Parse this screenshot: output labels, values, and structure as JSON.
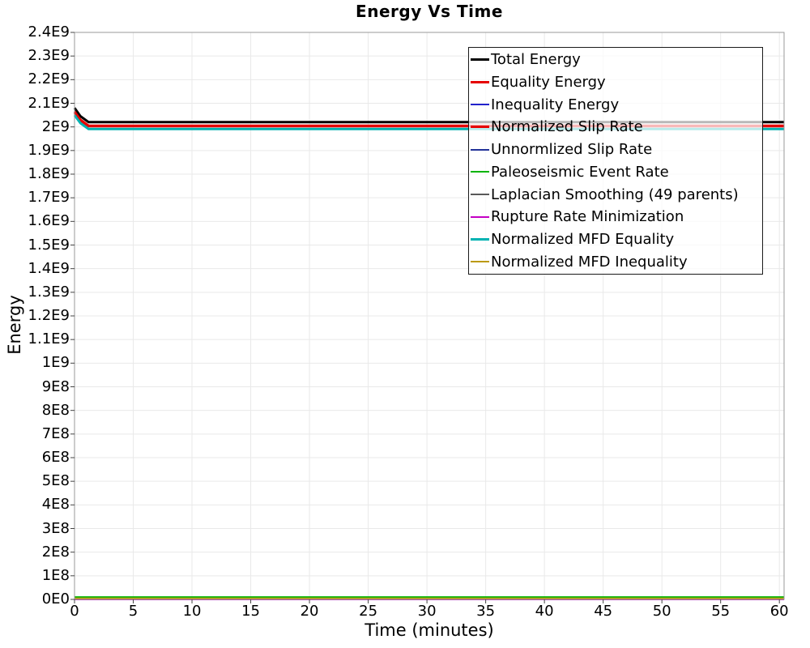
{
  "chart_data": {
    "type": "line",
    "title": "Energy Vs Time",
    "xlabel": "Time (minutes)",
    "ylabel": "Energy",
    "xlim": [
      0,
      60.4
    ],
    "ylim": [
      0,
      2400000000.0
    ],
    "grid": true,
    "legend_position": "top-right-inside",
    "x_ticks": [
      {
        "value": 0,
        "label": "0"
      },
      {
        "value": 5,
        "label": "5"
      },
      {
        "value": 10,
        "label": "10"
      },
      {
        "value": 15,
        "label": "15"
      },
      {
        "value": 20,
        "label": "20"
      },
      {
        "value": 25,
        "label": "25"
      },
      {
        "value": 30,
        "label": "30"
      },
      {
        "value": 35,
        "label": "35"
      },
      {
        "value": 40,
        "label": "40"
      },
      {
        "value": 45,
        "label": "45"
      },
      {
        "value": 50,
        "label": "50"
      },
      {
        "value": 55,
        "label": "55"
      },
      {
        "value": 60,
        "label": "60"
      }
    ],
    "y_ticks": [
      {
        "value": 0,
        "label": "0E0"
      },
      {
        "value": 100000000.0,
        "label": "1E8"
      },
      {
        "value": 200000000.0,
        "label": "2E8"
      },
      {
        "value": 300000000.0,
        "label": "3E8"
      },
      {
        "value": 400000000.0,
        "label": "4E8"
      },
      {
        "value": 500000000.0,
        "label": "5E8"
      },
      {
        "value": 600000000.0,
        "label": "6E8"
      },
      {
        "value": 700000000.0,
        "label": "7E8"
      },
      {
        "value": 800000000.0,
        "label": "8E8"
      },
      {
        "value": 900000000.0,
        "label": "9E8"
      },
      {
        "value": 1000000000.0,
        "label": "1E9"
      },
      {
        "value": 1100000000.0,
        "label": "1.1E9"
      },
      {
        "value": 1200000000.0,
        "label": "1.2E9"
      },
      {
        "value": 1300000000.0,
        "label": "1.3E9"
      },
      {
        "value": 1400000000.0,
        "label": "1.4E9"
      },
      {
        "value": 1500000000.0,
        "label": "1.5E9"
      },
      {
        "value": 1600000000.0,
        "label": "1.6E9"
      },
      {
        "value": 1700000000.0,
        "label": "1.7E9"
      },
      {
        "value": 1800000000.0,
        "label": "1.8E9"
      },
      {
        "value": 1900000000.0,
        "label": "1.9E9"
      },
      {
        "value": 2000000000.0,
        "label": "2E9"
      },
      {
        "value": 2100000000.0,
        "label": "2.1E9"
      },
      {
        "value": 2200000000.0,
        "label": "2.2E9"
      },
      {
        "value": 2300000000.0,
        "label": "2.3E9"
      },
      {
        "value": 2400000000.0,
        "label": "2.4E9"
      }
    ],
    "series": [
      {
        "name": "Total Energy",
        "color": "#000000",
        "stroke_width": 3,
        "points": [
          [
            0,
            2080000000.0
          ],
          [
            0.5,
            2045000000.0
          ],
          [
            1.2,
            2020000000.0
          ],
          [
            60.4,
            2020000000.0
          ]
        ]
      },
      {
        "name": "Equality Energy",
        "color": "#e60000",
        "stroke_width": 3,
        "points": [
          [
            0,
            2065000000.0
          ],
          [
            0.5,
            2030000000.0
          ],
          [
            1.2,
            2005000000.0
          ],
          [
            60.4,
            2005000000.0
          ]
        ]
      },
      {
        "name": "Inequality Energy",
        "color": "#2222cc",
        "stroke_width": 2,
        "points": [
          [
            0,
            0
          ],
          [
            60.4,
            0
          ]
        ]
      },
      {
        "name": "Normalized Slip Rate",
        "color": "#e60000",
        "stroke_width": 3,
        "points": [
          [
            0,
            2060000000.0
          ],
          [
            0.5,
            2027000000.0
          ],
          [
            1.2,
            2003000000.0
          ],
          [
            60.4,
            2003000000.0
          ]
        ]
      },
      {
        "name": "Unnormlized Slip Rate",
        "color": "#223399",
        "stroke_width": 2,
        "points": [
          [
            0,
            0
          ],
          [
            60.4,
            0
          ]
        ]
      },
      {
        "name": "Paleoseismic Event Rate",
        "color": "#00b400",
        "stroke_width": 2,
        "points": [
          [
            0,
            10000000.0
          ],
          [
            60.4,
            10000000.0
          ]
        ]
      },
      {
        "name": "Laplacian Smoothing (49 parents)",
        "color": "#595959",
        "stroke_width": 2,
        "points": [
          [
            0,
            0
          ],
          [
            60.4,
            0
          ]
        ]
      },
      {
        "name": "Rupture Rate Minimization",
        "color": "#c400c4",
        "stroke_width": 2,
        "points": [
          [
            0,
            0
          ],
          [
            60.4,
            0
          ]
        ]
      },
      {
        "name": "Normalized MFD Equality",
        "color": "#00b2b2",
        "stroke_width": 3,
        "points": [
          [
            0,
            2050000000.0
          ],
          [
            0.5,
            2016000000.0
          ],
          [
            1.2,
            1991000000.0
          ],
          [
            60.4,
            1991000000.0
          ]
        ]
      },
      {
        "name": "Normalized MFD Inequality",
        "color": "#bb9911",
        "stroke_width": 2,
        "points": [
          [
            0,
            4000000.0
          ],
          [
            60.4,
            4000000.0
          ]
        ]
      }
    ],
    "colors": {
      "grid": "#e9e9e9",
      "plot_border": "#9a9a9a",
      "tick": "#444444",
      "legend_border": "#1a1a1a"
    }
  }
}
